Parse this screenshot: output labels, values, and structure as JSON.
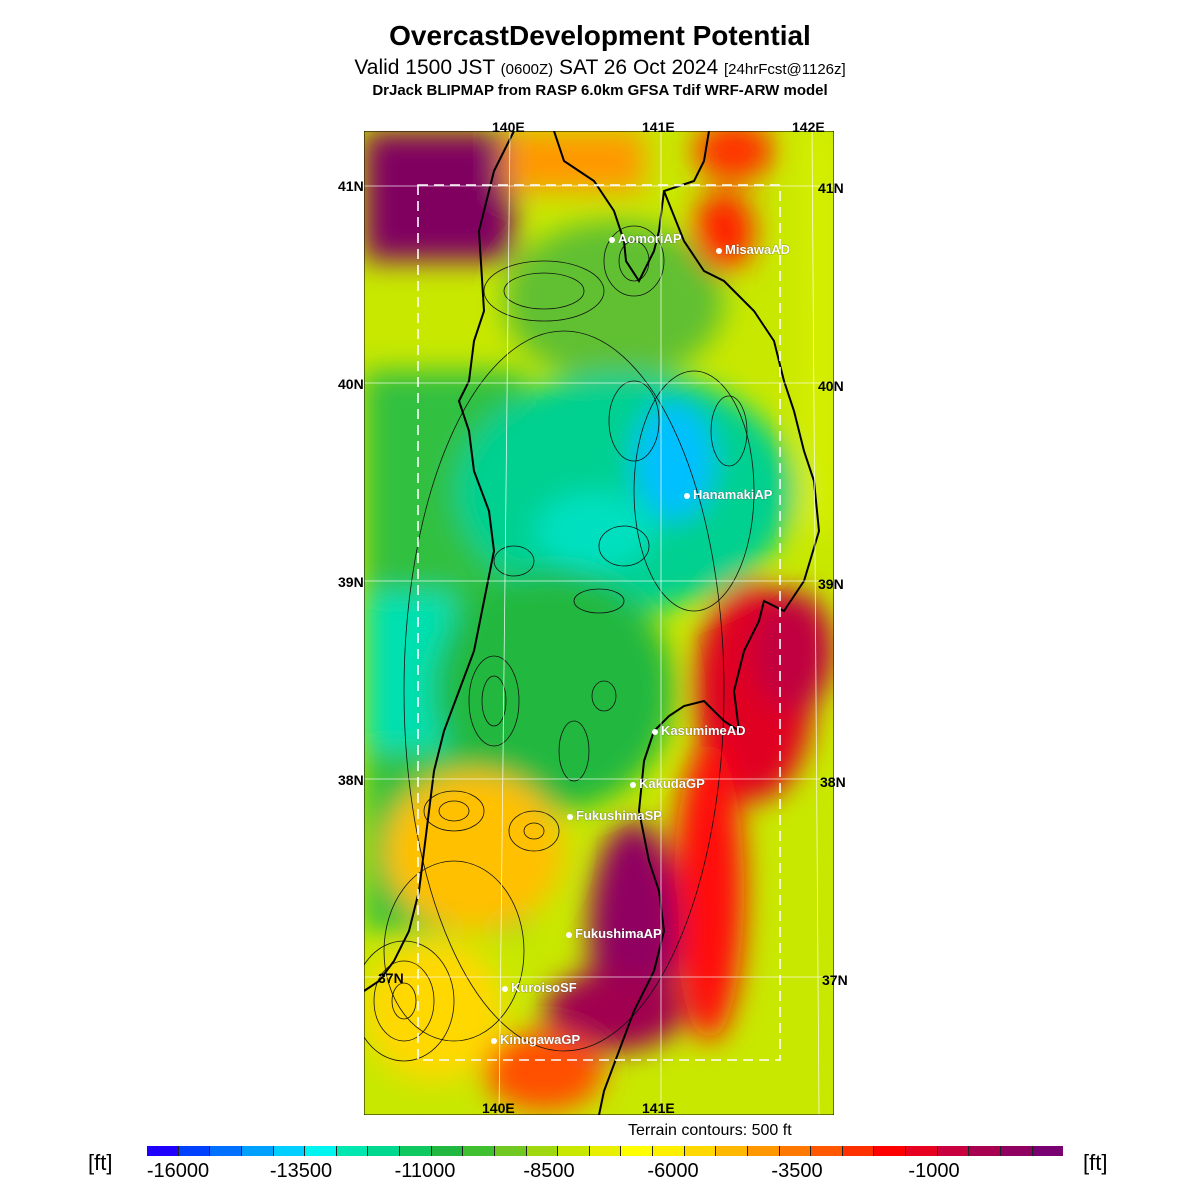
{
  "title": "OvercastDevelopment Potential",
  "subtitle": {
    "prefix": "Valid 1500 JST",
    "zulu": "(0600Z)",
    "date": "SAT 26 Oct 2024",
    "forecast": "[24hrFcst@1126z]"
  },
  "model": "DrJack BLIPMAP from RASP 6.0km GFSA Tdif WRF-ARW model",
  "axes": {
    "lon_top": [
      "140E",
      "141E",
      "142E"
    ],
    "lon_bottom": [
      "140E",
      "141E"
    ],
    "lat_left": [
      "41N",
      "40N",
      "39N",
      "38N",
      "37N"
    ],
    "lat_right": [
      "41N",
      "40N",
      "39N",
      "38N",
      "37N"
    ]
  },
  "stations": [
    {
      "name": "AomoriAP"
    },
    {
      "name": "MisawaAD"
    },
    {
      "name": "HanamakiAP"
    },
    {
      "name": "KasumimeAD"
    },
    {
      "name": "KakudaGP"
    },
    {
      "name": "FukushimaSP"
    },
    {
      "name": "FukushimaAP"
    },
    {
      "name": "KuroisoSF"
    },
    {
      "name": "KinugawaGP"
    }
  ],
  "terrain_note": "Terrain contours: 500 ft",
  "colorbar": {
    "unit": "[ft]",
    "ticks": [
      "-16000",
      "-13500",
      "-11000",
      "-8500",
      "-6000",
      "-3500",
      "-1000"
    ],
    "colors": [
      "#1f00ff",
      "#0040ff",
      "#0070ff",
      "#00a0ff",
      "#00cfff",
      "#00f5f0",
      "#00e8b0",
      "#00d890",
      "#10c860",
      "#20b840",
      "#40c030",
      "#70c820",
      "#a0d810",
      "#c8e800",
      "#e8f000",
      "#ffff00",
      "#fff000",
      "#ffd800",
      "#ffb800",
      "#ff9800",
      "#ff7800",
      "#ff5800",
      "#ff3000",
      "#ff0000",
      "#e80020",
      "#c80040",
      "#a80050",
      "#900060",
      "#780070"
    ]
  }
}
